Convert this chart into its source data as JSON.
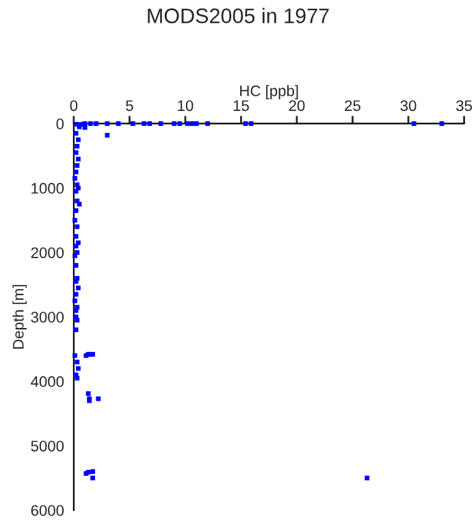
{
  "chart_data": {
    "type": "scatter",
    "title": "MODS2005 in 1977",
    "xlabel": "HC [ppb]",
    "ylabel": "Depth [m]",
    "xlim": [
      0,
      35
    ],
    "xticks": [
      0,
      5,
      10,
      15,
      20,
      25,
      30,
      35
    ],
    "ylim": [
      6000,
      0
    ],
    "yticks": [
      0,
      1000,
      2000,
      3000,
      4000,
      5000,
      6000
    ],
    "marker": "square",
    "grid": false,
    "series": [
      {
        "color": "#0000ff",
        "x": [
          0.3,
          0.5,
          0.8,
          1.0,
          1.5,
          2.0,
          3.0,
          4.0,
          5.3,
          6.3,
          6.8,
          7.8,
          9.0,
          9.5,
          10.2,
          10.6,
          11.0,
          12.0,
          15.4,
          15.9,
          30.5,
          33.0,
          0.5,
          1.0,
          3.0,
          0.2,
          0.4,
          0.3,
          0.2,
          0.4,
          0.3,
          0.2,
          0.1,
          0.3,
          0.4,
          0.2,
          0.3,
          0.5,
          0.2,
          0.1,
          0.3,
          0.2,
          0.4,
          0.2,
          0.3,
          0.1,
          0.2,
          0.3,
          0.2,
          0.4,
          0.2,
          0.1,
          0.3,
          0.2,
          0.2,
          0.3,
          0.2,
          0.1,
          0.3,
          0.4,
          0.2,
          0.3,
          1.1,
          1.3,
          1.5,
          1.7,
          1.3,
          1.4,
          1.4,
          2.2,
          1.1,
          1.3,
          1.7,
          1.7,
          26.3
        ],
        "values": [
          10,
          20,
          10,
          0,
          0,
          0,
          0,
          0,
          0,
          0,
          0,
          0,
          0,
          0,
          0,
          0,
          0,
          0,
          0,
          0,
          0,
          0,
          50,
          60,
          180,
          150,
          250,
          350,
          450,
          550,
          650,
          750,
          850,
          950,
          1000,
          1050,
          1200,
          1250,
          1350,
          1500,
          1600,
          1750,
          1850,
          1900,
          2000,
          2050,
          2200,
          2400,
          2450,
          2550,
          2650,
          2750,
          2850,
          2900,
          3000,
          3050,
          3200,
          3600,
          3700,
          3800,
          3900,
          3950,
          3600,
          3580,
          3580,
          3580,
          4190,
          4270,
          4300,
          4270,
          5430,
          5410,
          5400,
          5500,
          5500
        ]
      }
    ]
  }
}
